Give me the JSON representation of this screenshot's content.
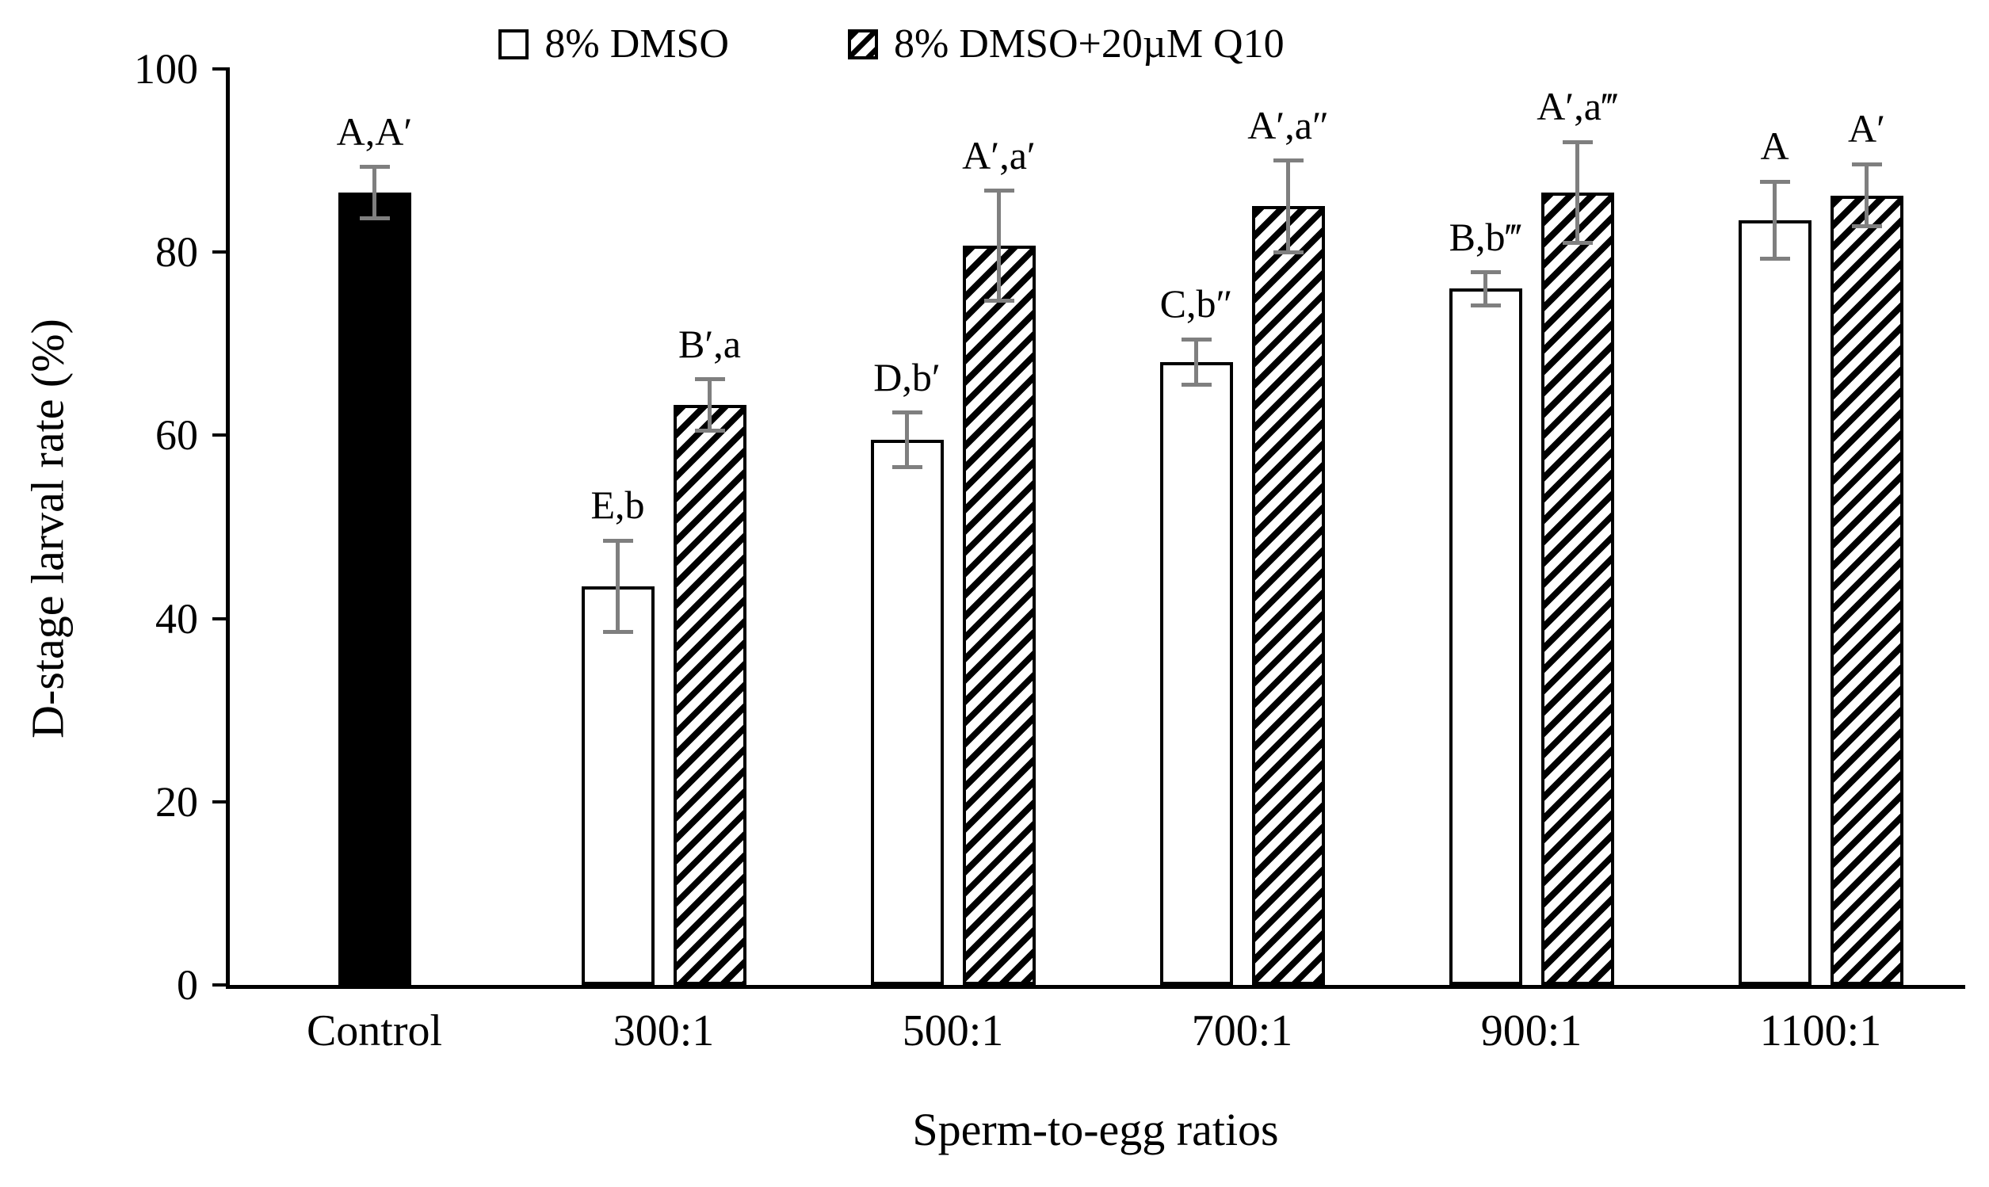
{
  "legend": [
    {
      "label": "8% DMSO",
      "swatch": "open"
    },
    {
      "label": "8% DMSO+20µM Q10",
      "swatch": "hatched"
    }
  ],
  "colors": {
    "bar_outline": "#000000",
    "solid_bar": "#000000",
    "error_bar": "#7f7f7f",
    "background": "#ffffff"
  },
  "chart_data": {
    "type": "bar",
    "title": "",
    "xlabel": "Sperm-to-egg ratios",
    "ylabel": "D-stage larval rate (%)",
    "ylim": [
      0,
      100
    ],
    "yticks": [
      0,
      20,
      40,
      60,
      80,
      100
    ],
    "grid": false,
    "legend_position": "top",
    "categories": [
      "Control",
      "300:1",
      "500:1",
      "700:1",
      "900:1",
      "1100:1"
    ],
    "series": [
      {
        "name": "Control",
        "style": "solid",
        "values": [
          86.5,
          null,
          null,
          null,
          null,
          null
        ],
        "errors": [
          2.8,
          null,
          null,
          null,
          null,
          null
        ],
        "bar_labels": [
          "A,A′",
          null,
          null,
          null,
          null,
          null
        ]
      },
      {
        "name": "8% DMSO",
        "style": "open",
        "values": [
          null,
          43.5,
          59.5,
          68,
          76,
          83.5
        ],
        "errors": [
          null,
          5,
          3,
          2.5,
          1.8,
          4.2
        ],
        "bar_labels": [
          null,
          "E,b",
          "D,b′",
          "C,b″",
          "B,b‴",
          "A"
        ]
      },
      {
        "name": "8% DMSO+20µM Q10",
        "style": "hatched",
        "values": [
          null,
          63.3,
          80.7,
          85,
          86.5,
          86.2
        ],
        "errors": [
          null,
          2.8,
          6,
          5,
          5.5,
          3.4
        ],
        "bar_labels": [
          null,
          "B′,a",
          "A′,a′",
          "A′,a″",
          "A′,a‴",
          "A′"
        ]
      }
    ]
  }
}
